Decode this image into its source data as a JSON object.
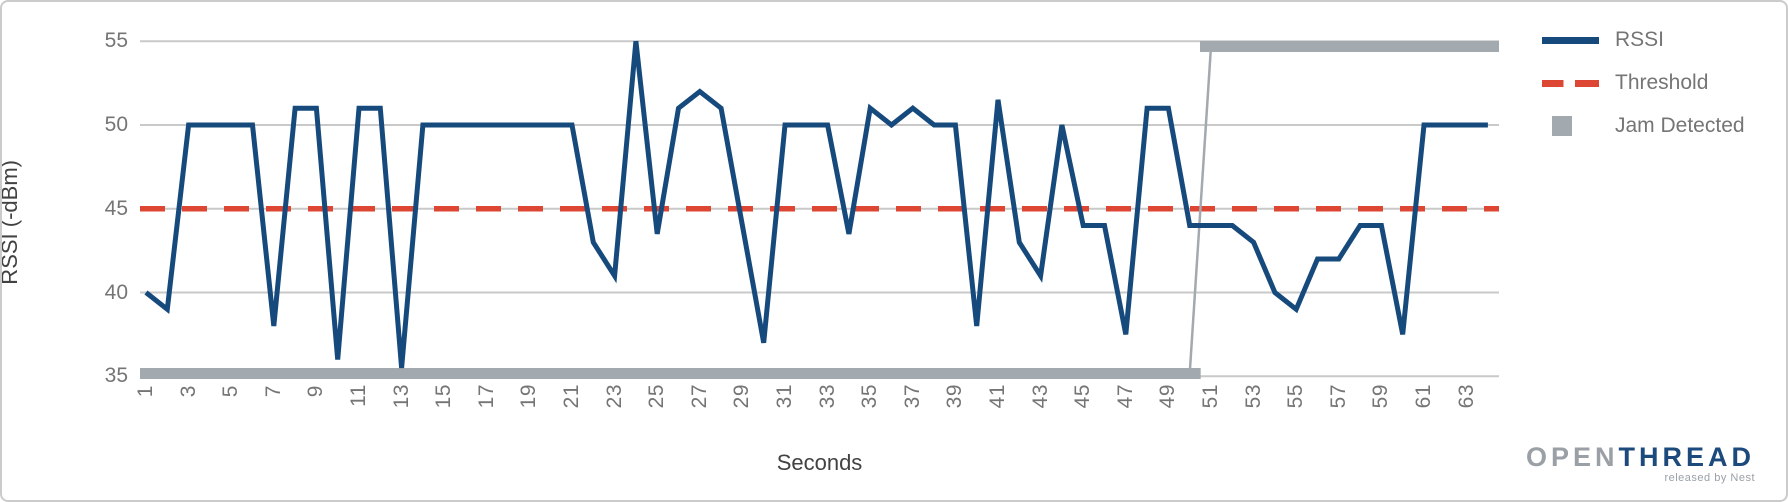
{
  "chart_data": {
    "type": "line",
    "title": "",
    "xlabel": "Seconds",
    "ylabel": "RSSI (-dBm)",
    "ylim": [
      35,
      55
    ],
    "yticks": [
      35,
      40,
      45,
      50,
      55
    ],
    "xticks": [
      1,
      3,
      5,
      7,
      9,
      11,
      13,
      15,
      17,
      19,
      21,
      23,
      25,
      27,
      29,
      31,
      33,
      35,
      37,
      39,
      41,
      43,
      45,
      47,
      49,
      51,
      53,
      55,
      57,
      59,
      61,
      63
    ],
    "grid": "horizontal-only",
    "legend_position": "top-right-outside",
    "x": [
      1,
      2,
      3,
      4,
      5,
      6,
      7,
      8,
      9,
      10,
      11,
      12,
      13,
      14,
      15,
      16,
      17,
      18,
      19,
      20,
      21,
      22,
      23,
      24,
      25,
      26,
      27,
      28,
      29,
      30,
      31,
      32,
      33,
      34,
      35,
      36,
      37,
      38,
      39,
      40,
      41,
      42,
      43,
      44,
      45,
      46,
      47,
      48,
      49,
      50,
      51,
      52,
      53,
      54,
      55,
      56,
      57,
      58,
      59,
      60,
      61,
      62,
      63,
      64
    ],
    "series": [
      {
        "name": "RSSI",
        "type": "line",
        "color": "#174a7c",
        "values": [
          40,
          39,
          50,
          50,
          50,
          50,
          38,
          51,
          51,
          36,
          51,
          51,
          35.5,
          50,
          50,
          50,
          50,
          50,
          50,
          50,
          50,
          43,
          41,
          55,
          43.5,
          51,
          52,
          51,
          44,
          37,
          50,
          50,
          50,
          43.5,
          51,
          50,
          51,
          50,
          50,
          38,
          51.5,
          43,
          41,
          50,
          44,
          44,
          37.5,
          51,
          51,
          44,
          44,
          44,
          43,
          40,
          39,
          42,
          42,
          44,
          44,
          37.5,
          50,
          50,
          50,
          50
        ]
      },
      {
        "name": "Threshold",
        "type": "horizontal-dashed-line",
        "color": "#dc4632",
        "value": 45
      },
      {
        "name": "Jam Detected",
        "type": "boolean-step",
        "color": "#a2aab0",
        "false_level": 35,
        "true_level": 55,
        "false_through_x": 50,
        "true_from_x": 51
      }
    ]
  },
  "axes": {
    "x_title": "Seconds",
    "y_title": "RSSI (-dBm)"
  },
  "legend": {
    "items": [
      {
        "label": "RSSI",
        "swatch": "line",
        "color": "#174a7c"
      },
      {
        "label": "Threshold",
        "swatch": "dashed-line",
        "color": "#dc4632"
      },
      {
        "label": "Jam Detected",
        "swatch": "square",
        "color": "#a2aab0"
      }
    ]
  },
  "branding": {
    "logo_part1": "OPEN",
    "logo_part2": "THREAD",
    "tagline": "released by Nest"
  },
  "colors": {
    "rssi_line": "#174a7c",
    "threshold_line": "#dc4632",
    "jam_bar": "#a2aab0",
    "gridline": "#c9c9c9",
    "tick_text": "#757575",
    "axis_title_text": "#424242",
    "card_border": "#cbcbcb"
  }
}
